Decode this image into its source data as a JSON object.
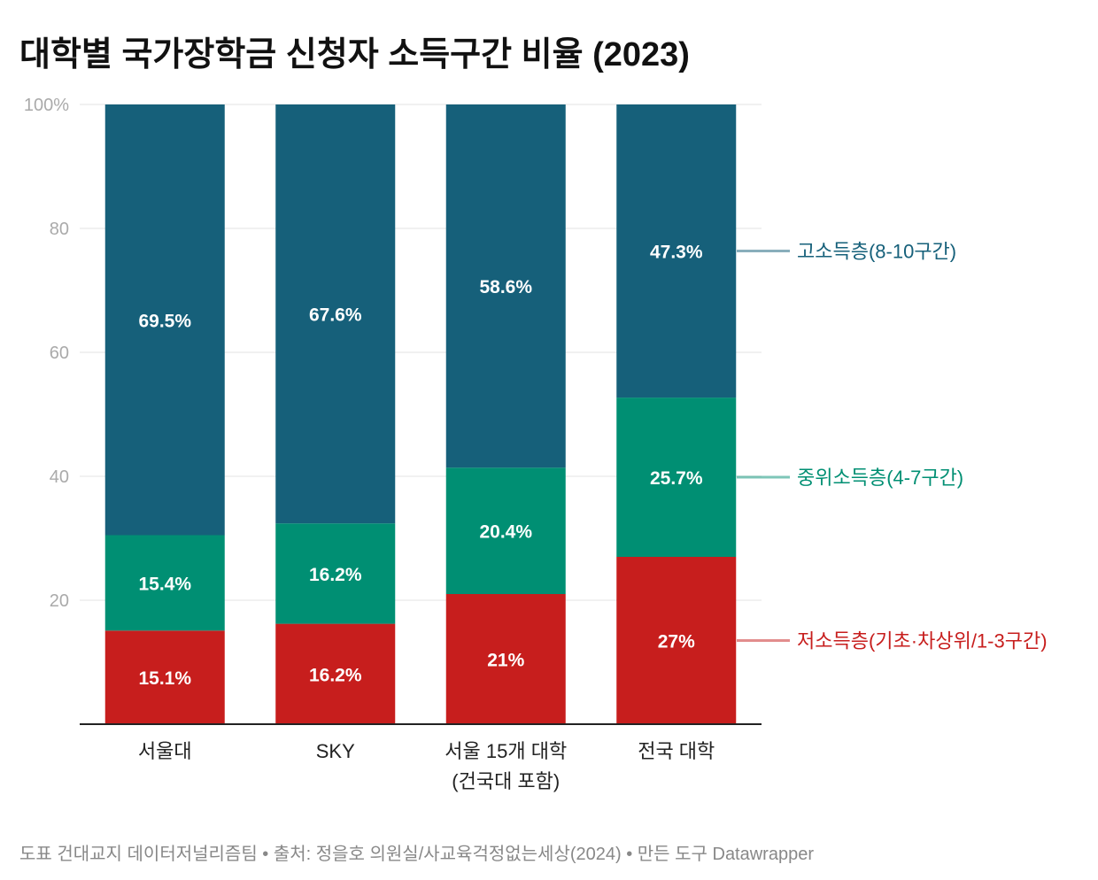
{
  "title": "대학별 국가장학금 신청자 소득구간 비율 (2023)",
  "footer": "도표 건대교지 데이터저널리즘팀 • 출처: 정을호 의원실/사교육걱정없는세상(2024) • 만든 도구 Datawrapper",
  "chart_data": {
    "type": "bar",
    "stacked": true,
    "title": "대학별 국가장학금 신청자 소득구간 비율 (2023)",
    "categories": [
      [
        "서울대"
      ],
      [
        "SKY"
      ],
      [
        "서울 15개 대학",
        "(건국대 포함)"
      ],
      [
        "전국 대학"
      ]
    ],
    "ylim": [
      0,
      100
    ],
    "yticks": [
      {
        "v": 100,
        "label": "100%"
      },
      {
        "v": 80,
        "label": "80"
      },
      {
        "v": 60,
        "label": "60"
      },
      {
        "v": 40,
        "label": "40"
      },
      {
        "v": 20,
        "label": "20"
      }
    ],
    "grid": true,
    "legend_placement": "right (direct labels)",
    "series": [
      {
        "name": "저소득층(기초·차상위/1-3구간)",
        "color": "#c71e1d",
        "values": [
          15.1,
          16.2,
          21,
          27
        ],
        "labels": [
          "15.1%",
          "16.2%",
          "21%",
          "27%"
        ]
      },
      {
        "name": "중위소득층(4-7구간)",
        "color": "#008f73",
        "values": [
          15.4,
          16.2,
          20.4,
          25.7
        ],
        "labels": [
          "15.4%",
          "16.2%",
          "20.4%",
          "25.7%"
        ]
      },
      {
        "name": "고소득층(8-10구간)",
        "color": "#16607a",
        "values": [
          69.5,
          67.6,
          58.6,
          47.3
        ],
        "labels": [
          "69.5%",
          "67.6%",
          "58.6%",
          "47.3%"
        ]
      }
    ]
  }
}
